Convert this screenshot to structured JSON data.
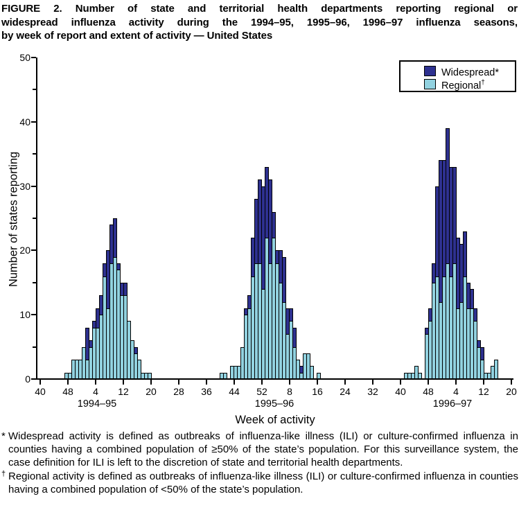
{
  "figure": {
    "title": "FIGURE 2. Number of state and territorial health departments reporting regional or widespread influenza activity during the 1994–95, 1995–96, 1996–97 influenza seasons, by week of report and extent of activity — United States",
    "title_lines": [
      "FIGURE 2. Number of state and territorial health departments reporting regional or",
      "widespread influenza activity during the 1994–95, 1995–96, 1996–97 influenza seasons,",
      "by week of report and extent of activity — United States"
    ]
  },
  "chart_data": {
    "type": "bar",
    "stacked": true,
    "xlabel": "Week of activity",
    "ylabel": "Number of states reporting",
    "ylim": [
      0,
      50
    ],
    "grid": false,
    "legend_position": "top-right",
    "y_major_ticks": [
      0,
      10,
      20,
      30,
      40,
      50
    ],
    "y_minor_ticks": [
      5,
      15,
      25,
      35,
      45
    ],
    "x_tick_labels": [
      "40",
      "48",
      "4",
      "12",
      "20",
      "28",
      "36",
      "44",
      "52",
      "8",
      "16",
      "24",
      "32",
      "40",
      "48",
      "4",
      "12",
      "20"
    ],
    "legend": [
      {
        "label": "Widespread*",
        "sup": "",
        "color": "#2e3190"
      },
      {
        "label": "Regional",
        "sup": "†",
        "color": "#92d2e0"
      }
    ],
    "bar_border_color": "#000000",
    "seasons": [
      {
        "label": "1994–95",
        "weeks": [
          47,
          48,
          49,
          50,
          51,
          52,
          1,
          2,
          3,
          4,
          5,
          6,
          7,
          8,
          9,
          10,
          11,
          12,
          13,
          14,
          15,
          16,
          17,
          18,
          19
        ],
        "regional": [
          1,
          1,
          3,
          3,
          3,
          5,
          3,
          5,
          8,
          8,
          10,
          16,
          11,
          18,
          19,
          17,
          13,
          13,
          9,
          6,
          4,
          3,
          1,
          1,
          1
        ],
        "widespread": [
          0,
          0,
          0,
          0,
          0,
          0,
          5,
          1,
          1,
          3,
          3,
          2,
          9,
          6,
          6,
          1,
          2,
          2,
          0,
          0,
          1,
          0,
          0,
          0,
          0
        ]
      },
      {
        "label": "1995–96",
        "weeks": [
          41,
          42,
          43,
          44,
          45,
          46,
          47,
          48,
          49,
          50,
          51,
          52,
          1,
          2,
          3,
          4,
          5,
          6,
          7,
          8,
          9,
          10,
          11,
          12,
          13,
          14,
          15,
          16,
          17
        ],
        "regional": [
          1,
          1,
          0,
          2,
          2,
          2,
          5,
          10,
          11,
          16,
          18,
          18,
          14,
          22,
          18,
          22,
          18,
          15,
          12,
          7,
          9,
          5,
          3,
          1,
          4,
          4,
          2,
          0,
          1
        ],
        "widespread": [
          0,
          0,
          0,
          0,
          0,
          0,
          0,
          1,
          2,
          6,
          10,
          13,
          16,
          11,
          13,
          4,
          2,
          5,
          7,
          4,
          2,
          3,
          0,
          1,
          0,
          0,
          0,
          0,
          0
        ]
      },
      {
        "label": "1996–97",
        "weeks": [
          41,
          42,
          43,
          44,
          45,
          46,
          47,
          48,
          49,
          50,
          51,
          52,
          1,
          2,
          3,
          4,
          5,
          6,
          7,
          8,
          9,
          10,
          11,
          12,
          13,
          14,
          15
        ],
        "regional": [
          1,
          1,
          1,
          2,
          1,
          0,
          7,
          9,
          15,
          16,
          12,
          16,
          18,
          16,
          18,
          11,
          12,
          16,
          11,
          11,
          9,
          5,
          3,
          1,
          1,
          2,
          3
        ],
        "widespread": [
          0,
          0,
          0,
          0,
          0,
          0,
          1,
          2,
          3,
          14,
          22,
          18,
          21,
          17,
          15,
          11,
          9,
          7,
          4,
          3,
          2,
          1,
          2,
          0,
          0,
          0,
          0
        ]
      }
    ]
  },
  "footnotes": [
    {
      "symbol": "*",
      "text": "Widespread activity is defined as outbreaks of influenza-like illness (ILI) or culture-confirmed influenza in counties having a combined population of ≥50% of the state’s population. For this surveillance system, the case definition for ILI is left to the discretion of state and territorial health departments."
    },
    {
      "symbol": "†",
      "text": "Regional activity is defined as outbreaks of influenza-like illness (ILI) or culture-confirmed influenza in counties having a combined population of <50% of the state’s population."
    }
  ]
}
